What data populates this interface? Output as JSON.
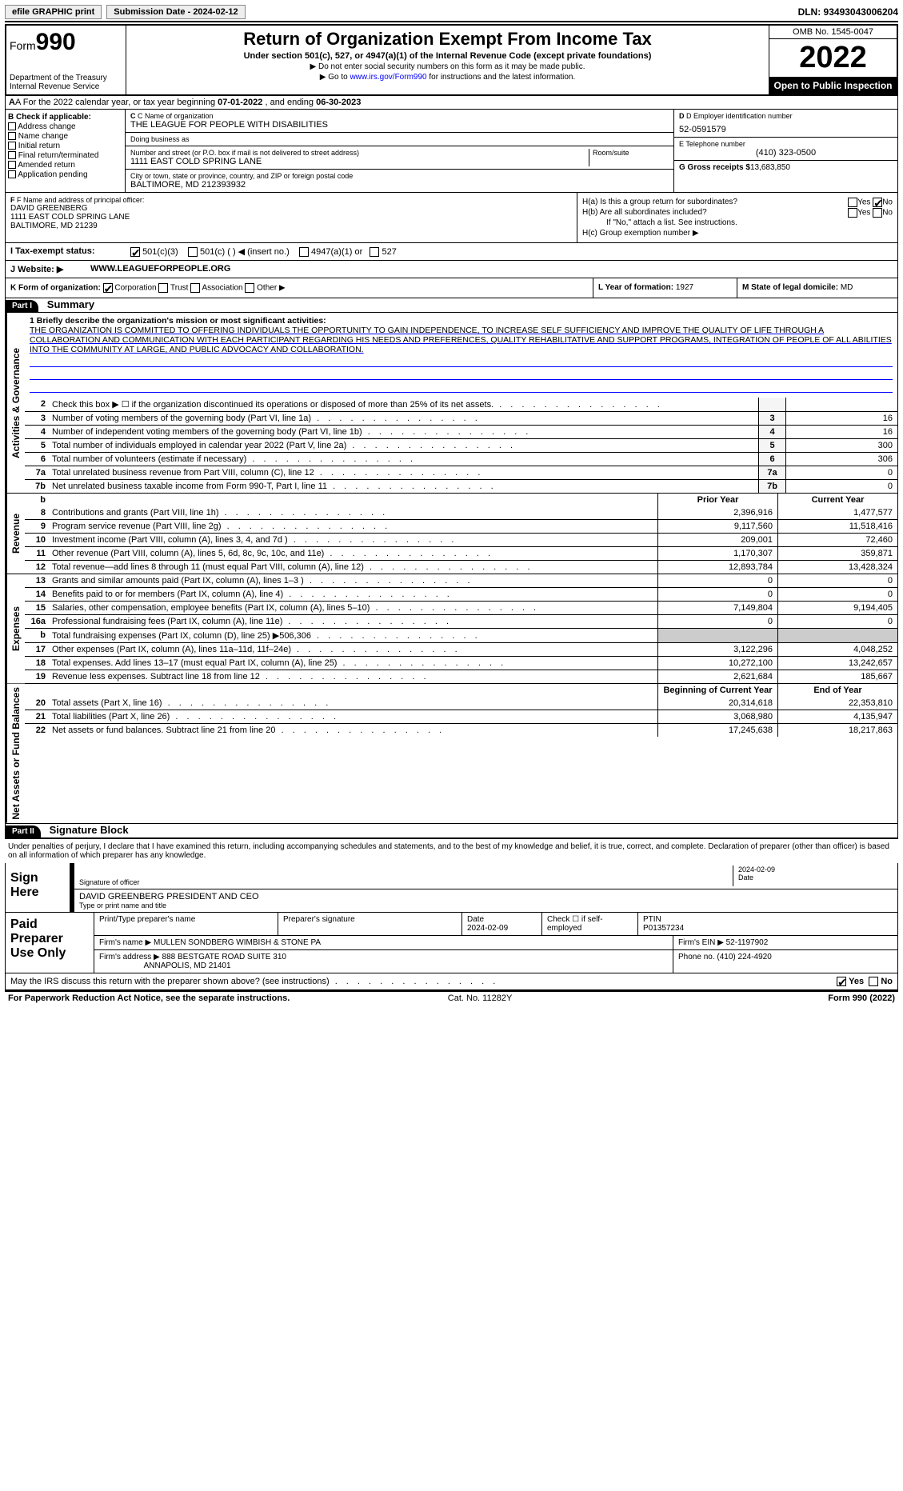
{
  "topbar": {
    "efile": "efile GRAPHIC print",
    "submit_btn": "Submission Date - 2024-02-12",
    "dln": "DLN: 93493043006204"
  },
  "header": {
    "form_label": "Form",
    "form_num": "990",
    "title": "Return of Organization Exempt From Income Tax",
    "subtitle": "Under section 501(c), 527, or 4947(a)(1) of the Internal Revenue Code (except private foundations)",
    "note1": "▶ Do not enter social security numbers on this form as it may be made public.",
    "note2_pre": "▶ Go to ",
    "note2_link": "www.irs.gov/Form990",
    "note2_post": " for instructions and the latest information.",
    "dept": "Department of the Treasury\nInternal Revenue Service",
    "omb": "OMB No. 1545-0047",
    "year": "2022",
    "open": "Open to Public Inspection"
  },
  "rowA": {
    "pre": "A For the 2022 calendar year, or tax year beginning ",
    "begin": "07-01-2022",
    "mid": " , and ending ",
    "end": "06-30-2023"
  },
  "colB": {
    "hdr": "B Check if applicable:",
    "items": [
      "Address change",
      "Name change",
      "Initial return",
      "Final return/terminated",
      "Amended return",
      "Application pending"
    ]
  },
  "colC": {
    "name_lbl": "C Name of organization",
    "name": "THE LEAGUE FOR PEOPLE WITH DISABILITIES",
    "dba_lbl": "Doing business as",
    "dba": "",
    "street_lbl": "Number and street (or P.O. box if mail is not delivered to street address)",
    "street": "1111 EAST COLD SPRING LANE",
    "room_lbl": "Room/suite",
    "city_lbl": "City or town, state or province, country, and ZIP or foreign postal code",
    "city": "BALTIMORE, MD  212393932"
  },
  "colD": {
    "ein_lbl": "D Employer identification number",
    "ein": "52-0591579",
    "tel_lbl": "E Telephone number",
    "tel": "(410) 323-0500",
    "gross_lbl": "G Gross receipts $",
    "gross": "13,683,850"
  },
  "colF": {
    "lbl": "F Name and address of principal officer:",
    "name": "DAVID GREENBERG",
    "addr1": "1111 EAST COLD SPRING LANE",
    "addr2": "BALTIMORE, MD  21239"
  },
  "colH": {
    "ha": "H(a)  Is this a group return for subordinates?",
    "hb": "H(b)  Are all subordinates included?",
    "hb_note": "If \"No,\" attach a list. See instructions.",
    "hc": "H(c)  Group exemption number ▶",
    "yes": "Yes",
    "no": "No"
  },
  "rowI": {
    "lbl": "I  Tax-exempt status:",
    "o1": "501(c)(3)",
    "o2": "501(c) (   ) ◀ (insert no.)",
    "o3": "4947(a)(1) or",
    "o4": "527"
  },
  "rowJ": {
    "lbl": "J  Website: ▶",
    "val": "WWW.LEAGUEFORPEOPLE.ORG"
  },
  "rowK": {
    "lbl": "K Form of organization:",
    "o1": "Corporation",
    "o2": "Trust",
    "o3": "Association",
    "o4": "Other ▶",
    "l_lbl": "L Year of formation:",
    "l_val": "1927",
    "m_lbl": "M State of legal domicile:",
    "m_val": "MD"
  },
  "part1": {
    "hdr": "Part I",
    "title": "Summary"
  },
  "mission": {
    "lbl": "1  Briefly describe the organization's mission or most significant activities:",
    "txt": "THE ORGANIZATION IS COMMITTED TO OFFERING INDIVIDUALS THE OPPORTUNITY TO GAIN INDEPENDENCE, TO INCREASE SELF SUFFICIENCY AND IMPROVE THE QUALITY OF LIFE THROUGH A COLLABORATION AND COMMUNICATION WITH EACH PARTICIPANT REGARDING HIS NEEDS AND PREFERENCES, QUALITY REHABILITATIVE AND SUPPORT PROGRAMS, INTEGRATION OF PEOPLE OF ALL ABILITIES INTO THE COMMUNITY AT LARGE, AND PUBLIC ADVOCACY AND COLLABORATION."
  },
  "gov_lines": [
    {
      "n": "2",
      "t": "Check this box ▶ ☐ if the organization discontinued its operations or disposed of more than 25% of its net assets.",
      "box": "",
      "v": ""
    },
    {
      "n": "3",
      "t": "Number of voting members of the governing body (Part VI, line 1a)",
      "box": "3",
      "v": "16"
    },
    {
      "n": "4",
      "t": "Number of independent voting members of the governing body (Part VI, line 1b)",
      "box": "4",
      "v": "16"
    },
    {
      "n": "5",
      "t": "Total number of individuals employed in calendar year 2022 (Part V, line 2a)",
      "box": "5",
      "v": "300"
    },
    {
      "n": "6",
      "t": "Total number of volunteers (estimate if necessary)",
      "box": "6",
      "v": "306"
    },
    {
      "n": "7a",
      "t": "Total unrelated business revenue from Part VIII, column (C), line 12",
      "box": "7a",
      "v": "0"
    },
    {
      "n": "7b",
      "t": "Net unrelated business taxable income from Form 990-T, Part I, line 11",
      "box": "7b",
      "v": "0"
    }
  ],
  "vtabs": {
    "gov": "Activities & Governance",
    "rev": "Revenue",
    "exp": "Expenses",
    "net": "Net Assets or Fund Balances"
  },
  "yearcols": {
    "prior": "Prior Year",
    "curr": "Current Year",
    "bgn": "Beginning of Current Year",
    "end": "End of Year"
  },
  "rev_lines": [
    {
      "n": "8",
      "t": "Contributions and grants (Part VIII, line 1h)",
      "p": "2,396,916",
      "c": "1,477,577"
    },
    {
      "n": "9",
      "t": "Program service revenue (Part VIII, line 2g)",
      "p": "9,117,560",
      "c": "11,518,416"
    },
    {
      "n": "10",
      "t": "Investment income (Part VIII, column (A), lines 3, 4, and 7d )",
      "p": "209,001",
      "c": "72,460"
    },
    {
      "n": "11",
      "t": "Other revenue (Part VIII, column (A), lines 5, 6d, 8c, 9c, 10c, and 11e)",
      "p": "1,170,307",
      "c": "359,871"
    },
    {
      "n": "12",
      "t": "Total revenue—add lines 8 through 11 (must equal Part VIII, column (A), line 12)",
      "p": "12,893,784",
      "c": "13,428,324"
    }
  ],
  "exp_lines": [
    {
      "n": "13",
      "t": "Grants and similar amounts paid (Part IX, column (A), lines 1–3 )",
      "p": "0",
      "c": "0"
    },
    {
      "n": "14",
      "t": "Benefits paid to or for members (Part IX, column (A), line 4)",
      "p": "0",
      "c": "0"
    },
    {
      "n": "15",
      "t": "Salaries, other compensation, employee benefits (Part IX, column (A), lines 5–10)",
      "p": "7,149,804",
      "c": "9,194,405"
    },
    {
      "n": "16a",
      "t": "Professional fundraising fees (Part IX, column (A), line 11e)",
      "p": "0",
      "c": "0"
    },
    {
      "n": "b",
      "t": "Total fundraising expenses (Part IX, column (D), line 25) ▶506,306",
      "p": "",
      "c": "",
      "grey": true
    },
    {
      "n": "17",
      "t": "Other expenses (Part IX, column (A), lines 11a–11d, 11f–24e)",
      "p": "3,122,296",
      "c": "4,048,252"
    },
    {
      "n": "18",
      "t": "Total expenses. Add lines 13–17 (must equal Part IX, column (A), line 25)",
      "p": "10,272,100",
      "c": "13,242,657"
    },
    {
      "n": "19",
      "t": "Revenue less expenses. Subtract line 18 from line 12",
      "p": "2,621,684",
      "c": "185,667"
    }
  ],
  "net_lines": [
    {
      "n": "20",
      "t": "Total assets (Part X, line 16)",
      "p": "20,314,618",
      "c": "22,353,810"
    },
    {
      "n": "21",
      "t": "Total liabilities (Part X, line 26)",
      "p": "3,068,980",
      "c": "4,135,947"
    },
    {
      "n": "22",
      "t": "Net assets or fund balances. Subtract line 21 from line 20",
      "p": "17,245,638",
      "c": "18,217,863"
    }
  ],
  "part2": {
    "hdr": "Part II",
    "title": "Signature Block"
  },
  "sig": {
    "intro": "Under penalties of perjury, I declare that I have examined this return, including accompanying schedules and statements, and to the best of my knowledge and belief, it is true, correct, and complete. Declaration of preparer (other than officer) is based on all information of which preparer has any knowledge.",
    "here": "Sign Here",
    "sig_lbl": "Signature of officer",
    "date": "2024-02-09",
    "date_lbl": "Date",
    "name": "DAVID GREENBERG  PRESIDENT AND CEO",
    "name_lbl": "Type or print name and title"
  },
  "paid": {
    "hdr": "Paid Preparer Use Only",
    "h1": "Print/Type preparer's name",
    "h2": "Preparer's signature",
    "h3": "Date",
    "h3v": "2024-02-09",
    "h4": "Check ☐ if self-employed",
    "h5": "PTIN",
    "h5v": "P01357234",
    "firm_lbl": "Firm's name   ▶",
    "firm": "MULLEN SONDBERG WIMBISH & STONE PA",
    "ein_lbl": "Firm's EIN ▶",
    "ein": "52-1197902",
    "addr_lbl": "Firm's address ▶",
    "addr1": "888 BESTGATE ROAD SUITE 310",
    "addr2": "ANNAPOLIS, MD  21401",
    "phone_lbl": "Phone no.",
    "phone": "(410) 224-4920"
  },
  "may": {
    "txt": "May the IRS discuss this return with the preparer shown above? (see instructions)",
    "yes": "Yes",
    "no": "No"
  },
  "footer": {
    "l": "For Paperwork Reduction Act Notice, see the separate instructions.",
    "c": "Cat. No. 11282Y",
    "r": "Form 990 (2022)"
  }
}
